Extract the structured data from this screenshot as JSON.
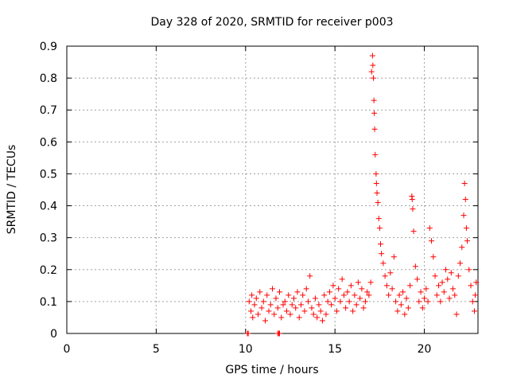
{
  "chart_data": {
    "type": "scatter",
    "title": "Day 328 of 2020, SRMTID for receiver p003",
    "xlabel": "GPS time / hours",
    "ylabel": "SRMTID / TECUs",
    "xlim": [
      0,
      23
    ],
    "ylim": [
      0,
      0.9
    ],
    "x_ticks": [
      0,
      5,
      10,
      15,
      20
    ],
    "x_tick_labels": [
      "0",
      "5",
      "10",
      "15",
      "20"
    ],
    "y_ticks": [
      0,
      0.1,
      0.2,
      0.3,
      0.4,
      0.5,
      0.6,
      0.7,
      0.8,
      0.9
    ],
    "y_tick_labels": [
      "0",
      "0.1",
      "0.2",
      "0.3",
      "0.4",
      "0.5",
      "0.6",
      "0.7",
      "0.8",
      "0.9"
    ],
    "grid": true,
    "marker": "+",
    "color": "#ff0000",
    "series": [
      {
        "name": "SRMTID",
        "points": [
          [
            10.1,
            0.0
          ],
          [
            10.15,
            0.0
          ],
          [
            11.8,
            0.0
          ],
          [
            11.85,
            0.0
          ],
          [
            11.9,
            0.0
          ],
          [
            10.2,
            0.1
          ],
          [
            10.3,
            0.07
          ],
          [
            10.35,
            0.12
          ],
          [
            10.4,
            0.05
          ],
          [
            10.5,
            0.09
          ],
          [
            10.6,
            0.11
          ],
          [
            10.7,
            0.06
          ],
          [
            10.8,
            0.13
          ],
          [
            10.9,
            0.08
          ],
          [
            11.0,
            0.1
          ],
          [
            11.1,
            0.04
          ],
          [
            11.2,
            0.12
          ],
          [
            11.3,
            0.07
          ],
          [
            11.4,
            0.09
          ],
          [
            11.5,
            0.14
          ],
          [
            11.6,
            0.06
          ],
          [
            11.7,
            0.11
          ],
          [
            11.8,
            0.08
          ],
          [
            11.9,
            0.13
          ],
          [
            12.0,
            0.05
          ],
          [
            12.1,
            0.09
          ],
          [
            12.2,
            0.1
          ],
          [
            12.3,
            0.07
          ],
          [
            12.4,
            0.12
          ],
          [
            12.5,
            0.06
          ],
          [
            12.6,
            0.09
          ],
          [
            12.7,
            0.11
          ],
          [
            12.8,
            0.08
          ],
          [
            12.9,
            0.13
          ],
          [
            13.0,
            0.05
          ],
          [
            13.1,
            0.09
          ],
          [
            13.2,
            0.12
          ],
          [
            13.3,
            0.07
          ],
          [
            13.4,
            0.14
          ],
          [
            13.5,
            0.1
          ],
          [
            13.6,
            0.18
          ],
          [
            13.7,
            0.08
          ],
          [
            13.8,
            0.06
          ],
          [
            13.9,
            0.11
          ],
          [
            14.0,
            0.05
          ],
          [
            14.1,
            0.09
          ],
          [
            14.2,
            0.07
          ],
          [
            14.3,
            0.04
          ],
          [
            14.4,
            0.12
          ],
          [
            14.5,
            0.06
          ],
          [
            14.6,
            0.1
          ],
          [
            14.7,
            0.13
          ],
          [
            14.8,
            0.09
          ],
          [
            14.9,
            0.15
          ],
          [
            15.0,
            0.11
          ],
          [
            15.1,
            0.07
          ],
          [
            15.2,
            0.14
          ],
          [
            15.3,
            0.1
          ],
          [
            15.4,
            0.17
          ],
          [
            15.5,
            0.12
          ],
          [
            15.6,
            0.08
          ],
          [
            15.7,
            0.13
          ],
          [
            15.8,
            0.1
          ],
          [
            15.9,
            0.15
          ],
          [
            16.0,
            0.07
          ],
          [
            16.1,
            0.12
          ],
          [
            16.2,
            0.09
          ],
          [
            16.3,
            0.16
          ],
          [
            16.4,
            0.11
          ],
          [
            16.5,
            0.14
          ],
          [
            16.6,
            0.08
          ],
          [
            16.7,
            0.1
          ],
          [
            16.8,
            0.13
          ],
          [
            16.9,
            0.12
          ],
          [
            17.0,
            0.16
          ],
          [
            17.05,
            0.82
          ],
          [
            17.1,
            0.87
          ],
          [
            17.12,
            0.84
          ],
          [
            17.15,
            0.8
          ],
          [
            17.18,
            0.73
          ],
          [
            17.2,
            0.69
          ],
          [
            17.22,
            0.64
          ],
          [
            17.25,
            0.56
          ],
          [
            17.3,
            0.5
          ],
          [
            17.32,
            0.47
          ],
          [
            17.35,
            0.44
          ],
          [
            17.4,
            0.41
          ],
          [
            17.45,
            0.36
          ],
          [
            17.5,
            0.33
          ],
          [
            17.55,
            0.28
          ],
          [
            17.6,
            0.25
          ],
          [
            17.7,
            0.22
          ],
          [
            17.8,
            0.18
          ],
          [
            17.9,
            0.15
          ],
          [
            18.0,
            0.12
          ],
          [
            18.1,
            0.19
          ],
          [
            18.2,
            0.14
          ],
          [
            18.3,
            0.24
          ],
          [
            18.4,
            0.1
          ],
          [
            18.5,
            0.07
          ],
          [
            18.6,
            0.12
          ],
          [
            18.7,
            0.09
          ],
          [
            18.8,
            0.13
          ],
          [
            18.9,
            0.06
          ],
          [
            19.0,
            0.11
          ],
          [
            19.1,
            0.08
          ],
          [
            19.2,
            0.15
          ],
          [
            19.3,
            0.43
          ],
          [
            19.32,
            0.42
          ],
          [
            19.35,
            0.39
          ],
          [
            19.4,
            0.32
          ],
          [
            19.5,
            0.21
          ],
          [
            19.6,
            0.17
          ],
          [
            19.7,
            0.1
          ],
          [
            19.8,
            0.13
          ],
          [
            19.9,
            0.08
          ],
          [
            20.0,
            0.11
          ],
          [
            20.1,
            0.14
          ],
          [
            20.2,
            0.1
          ],
          [
            20.3,
            0.33
          ],
          [
            20.4,
            0.29
          ],
          [
            20.5,
            0.24
          ],
          [
            20.6,
            0.18
          ],
          [
            20.7,
            0.12
          ],
          [
            20.8,
            0.15
          ],
          [
            20.9,
            0.1
          ],
          [
            21.0,
            0.16
          ],
          [
            21.1,
            0.13
          ],
          [
            21.2,
            0.2
          ],
          [
            21.3,
            0.17
          ],
          [
            21.4,
            0.11
          ],
          [
            21.5,
            0.19
          ],
          [
            21.6,
            0.14
          ],
          [
            21.7,
            0.12
          ],
          [
            21.8,
            0.06
          ],
          [
            21.9,
            0.18
          ],
          [
            22.0,
            0.22
          ],
          [
            22.1,
            0.27
          ],
          [
            22.2,
            0.37
          ],
          [
            22.25,
            0.47
          ],
          [
            22.3,
            0.42
          ],
          [
            22.35,
            0.33
          ],
          [
            22.4,
            0.29
          ],
          [
            22.5,
            0.2
          ],
          [
            22.6,
            0.15
          ],
          [
            22.7,
            0.1
          ],
          [
            22.8,
            0.07
          ],
          [
            22.85,
            0.12
          ],
          [
            22.9,
            0.16
          ]
        ]
      }
    ]
  }
}
